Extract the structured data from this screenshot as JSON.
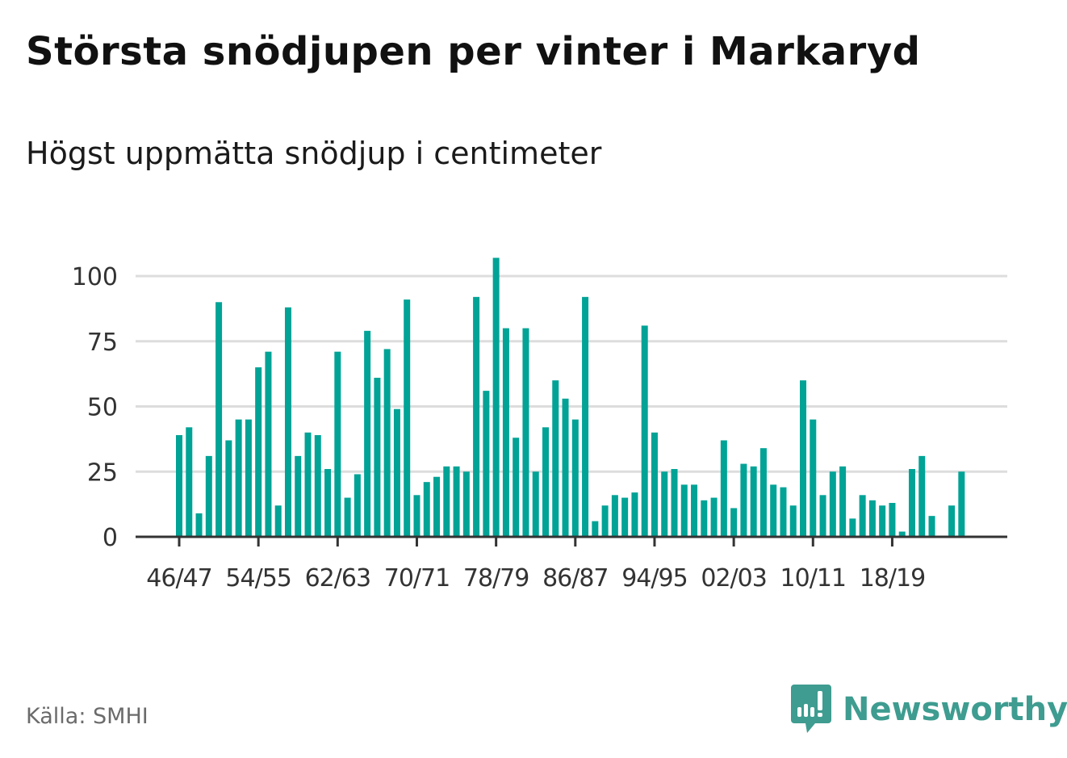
{
  "header": {
    "title": "Största snödjupen per vinter i Markaryd",
    "subtitle": "Högst uppmätta snödjup i centimeter"
  },
  "footer": {
    "source": "Källa: SMHI",
    "logo_text": "Newsworthy"
  },
  "colors": {
    "bar": "#00a396",
    "grid": "#dddddd",
    "axis": "#333333",
    "logo": "#3e9c90"
  },
  "chart_data": {
    "type": "bar",
    "title": "Största snödjupen per vinter i Markaryd",
    "subtitle": "Högst uppmätta snödjup i centimeter",
    "xlabel": "",
    "ylabel": "cm",
    "ylim": [
      0,
      110
    ],
    "yticks": [
      0,
      25,
      50,
      75,
      100
    ],
    "grid": true,
    "first_season_start": 1946,
    "xtick_labels": [
      "46/47",
      "54/55",
      "62/63",
      "70/71",
      "78/79",
      "86/87",
      "94/95",
      "02/03",
      "10/11",
      "18/19"
    ],
    "xtick_every": 8,
    "values": [
      39,
      42,
      9,
      31,
      90,
      37,
      45,
      45,
      65,
      71,
      12,
      88,
      31,
      40,
      39,
      26,
      71,
      15,
      24,
      79,
      61,
      72,
      49,
      91,
      16,
      21,
      23,
      27,
      27,
      25,
      92,
      56,
      107,
      80,
      38,
      80,
      25,
      42,
      60,
      53,
      45,
      92,
      6,
      12,
      16,
      15,
      17,
      81,
      40,
      25,
      26,
      20,
      20,
      14,
      15,
      37,
      11,
      28,
      27,
      34,
      20,
      19,
      12,
      60,
      45,
      16,
      25,
      27,
      7,
      16,
      14,
      12,
      13,
      2,
      26,
      31,
      8,
      null,
      12,
      25
    ]
  }
}
